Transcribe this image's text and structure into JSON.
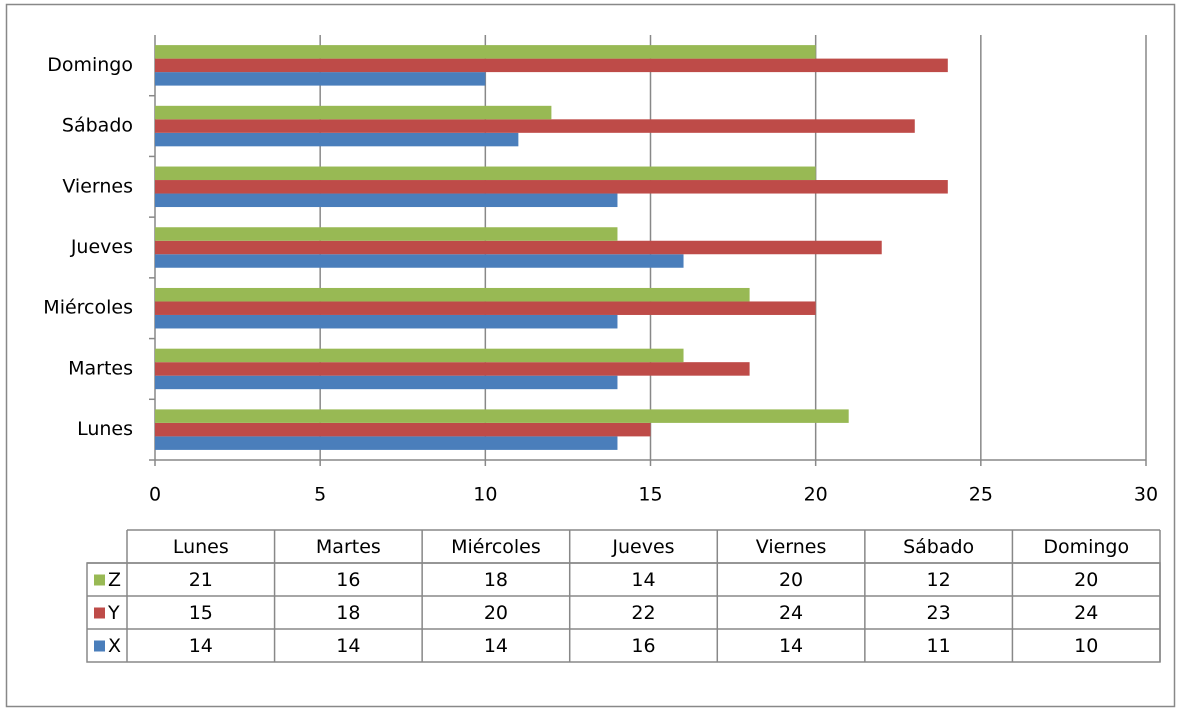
{
  "chart_data": {
    "type": "bar",
    "orientation": "horizontal",
    "categories": [
      "Lunes",
      "Martes",
      "Miércoles",
      "Jueves",
      "Viernes",
      "Sábado",
      "Domingo"
    ],
    "series": [
      {
        "name": "X",
        "color": "#4a7ebb",
        "values": [
          14,
          14,
          14,
          16,
          14,
          11,
          10
        ]
      },
      {
        "name": "Y",
        "color": "#be4b48",
        "values": [
          15,
          18,
          20,
          22,
          24,
          23,
          24
        ]
      },
      {
        "name": "Z",
        "color": "#98b954",
        "values": [
          21,
          16,
          18,
          14,
          20,
          12,
          20
        ]
      }
    ],
    "xlim": [
      0,
      30
    ],
    "xticks": [
      0,
      5,
      10,
      15,
      20,
      25,
      30
    ],
    "grid": true,
    "data_table": true
  }
}
